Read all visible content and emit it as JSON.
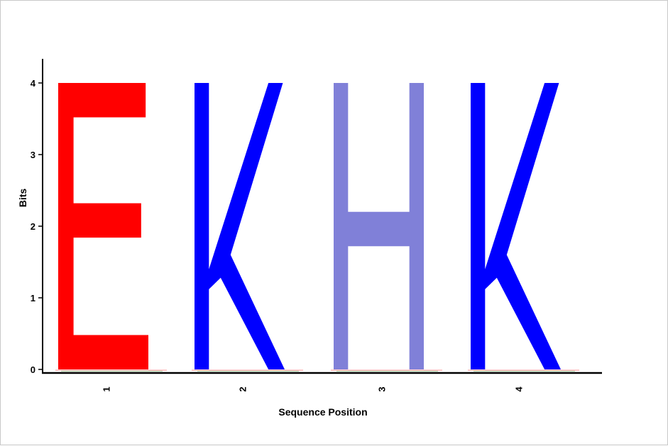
{
  "chart_data": {
    "type": "sequence-logo",
    "xlabel": "Sequence Position",
    "ylabel": "Bits",
    "ylim": [
      0,
      4
    ],
    "yticks": [
      "0",
      "1",
      "2",
      "3",
      "4"
    ],
    "positions": [
      {
        "label": "1",
        "letter": "E",
        "color": "#ff0000",
        "bits": 4.0
      },
      {
        "label": "2",
        "letter": "K",
        "color": "#0000ff",
        "bits": 4.0
      },
      {
        "label": "3",
        "letter": "H",
        "color": "#8080d8",
        "bits": 4.0
      },
      {
        "label": "4",
        "letter": "K",
        "color": "#0000ff",
        "bits": 4.0
      }
    ],
    "grid": false,
    "legend": "none"
  }
}
